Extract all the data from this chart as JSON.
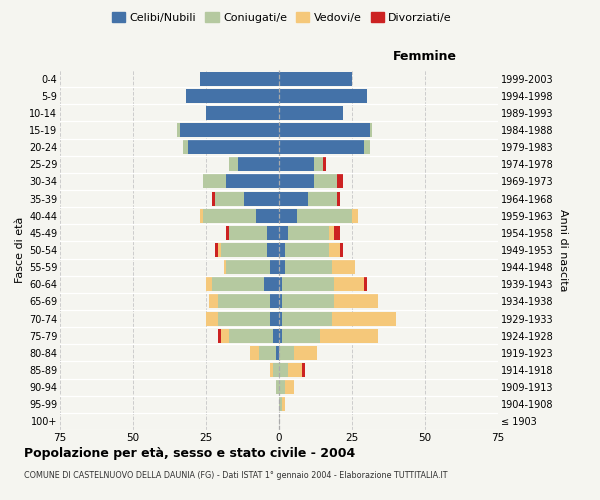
{
  "age_groups": [
    "100+",
    "95-99",
    "90-94",
    "85-89",
    "80-84",
    "75-79",
    "70-74",
    "65-69",
    "60-64",
    "55-59",
    "50-54",
    "45-49",
    "40-44",
    "35-39",
    "30-34",
    "25-29",
    "20-24",
    "15-19",
    "10-14",
    "5-9",
    "0-4"
  ],
  "birth_years": [
    "≤ 1903",
    "1904-1908",
    "1909-1913",
    "1914-1918",
    "1919-1923",
    "1924-1928",
    "1929-1933",
    "1934-1938",
    "1939-1943",
    "1944-1948",
    "1949-1953",
    "1954-1958",
    "1959-1963",
    "1964-1968",
    "1969-1973",
    "1974-1978",
    "1979-1983",
    "1984-1988",
    "1989-1993",
    "1994-1998",
    "1999-2003"
  ],
  "colors": {
    "celibi": "#4472a8",
    "coniugati": "#b5c9a0",
    "vedovi": "#f5c87a",
    "divorziati": "#cc2222"
  },
  "males": {
    "celibi": [
      0,
      0,
      0,
      0,
      1,
      2,
      3,
      3,
      5,
      3,
      4,
      4,
      8,
      12,
      18,
      14,
      31,
      34,
      25,
      32,
      27
    ],
    "coniugati": [
      0,
      0,
      1,
      2,
      6,
      15,
      18,
      18,
      18,
      15,
      16,
      13,
      18,
      10,
      8,
      3,
      2,
      1,
      0,
      0,
      0
    ],
    "vedovi": [
      0,
      0,
      0,
      1,
      3,
      3,
      4,
      3,
      2,
      1,
      1,
      0,
      1,
      0,
      0,
      0,
      0,
      0,
      0,
      0,
      0
    ],
    "divorziati": [
      0,
      0,
      0,
      0,
      0,
      1,
      0,
      0,
      0,
      0,
      1,
      1,
      0,
      1,
      0,
      0,
      0,
      0,
      0,
      0,
      0
    ]
  },
  "females": {
    "celibi": [
      0,
      0,
      0,
      0,
      0,
      1,
      1,
      1,
      1,
      2,
      2,
      3,
      6,
      10,
      12,
      12,
      29,
      31,
      22,
      30,
      25
    ],
    "coniugati": [
      0,
      1,
      2,
      3,
      5,
      13,
      17,
      18,
      18,
      16,
      15,
      14,
      19,
      10,
      8,
      3,
      2,
      1,
      0,
      0,
      0
    ],
    "vedovi": [
      0,
      1,
      3,
      5,
      8,
      20,
      22,
      15,
      10,
      8,
      4,
      2,
      2,
      0,
      0,
      0,
      0,
      0,
      0,
      0,
      0
    ],
    "divorziati": [
      0,
      0,
      0,
      1,
      0,
      0,
      0,
      0,
      1,
      0,
      1,
      2,
      0,
      1,
      2,
      1,
      0,
      0,
      0,
      0,
      0
    ]
  },
  "title": "Popolazione per età, sesso e stato civile - 2004",
  "subtitle": "COMUNE DI CASTELNUOVO DELLA DAUNIA (FG) - Dati ISTAT 1° gennaio 2004 - Elaborazione TUTTITALIA.IT",
  "xlabel_right": "Femmine",
  "ylabel_left": "Fasce di età",
  "ylabel_right": "Anni di nascita",
  "xlim": 75,
  "background_color": "#f5f5f0",
  "grid_color": "#cccccc",
  "legend_labels": [
    "Celibi/Nubili",
    "Coniugati/e",
    "Vedovi/e",
    "Divorziati/e"
  ]
}
